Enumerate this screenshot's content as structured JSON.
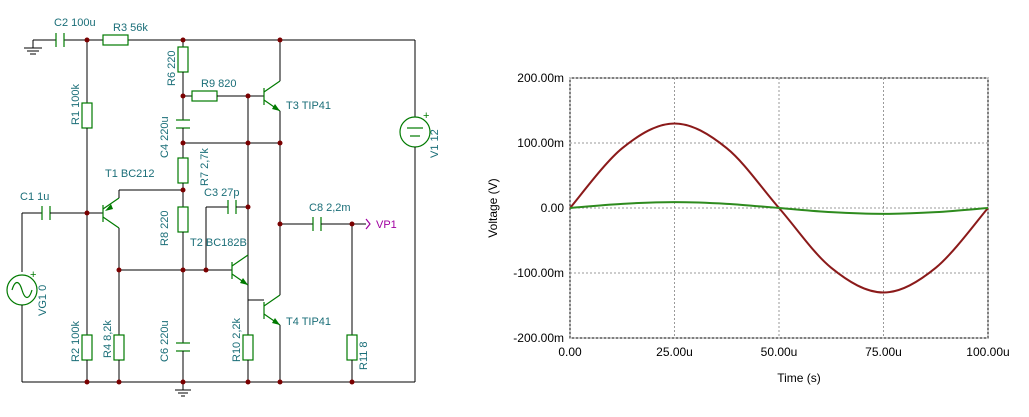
{
  "schematic": {
    "labels": {
      "c2": "C2 100u",
      "r3": "R3 56k",
      "r6": "R6 220",
      "r9": "R9 820",
      "t3": "T3 TIP41",
      "r1": "R1 100k",
      "c4": "C4 220u",
      "r7": "R7 2,7k",
      "t1": "T1 BC212",
      "c3": "C3 27p",
      "c1": "C1 1u",
      "r8": "R8 220",
      "t2": "T2 BC182B",
      "c8": "C8 2,2m",
      "vp1": "VP1",
      "v1": "V1 12",
      "vg1": "VG1 0",
      "r2": "R2 100k",
      "r4": "R4 8,2k",
      "c6": "C6 220u",
      "r10": "R10 2,2k",
      "t4": "T4 TIP41",
      "r11": "R11 8"
    },
    "colors": {
      "wire": "#000000",
      "component": "#007a00",
      "label": "#1a6e78",
      "probe": "#a000a0",
      "node": "#7a0000"
    }
  },
  "chart_data": {
    "type": "line",
    "xlabel": "Time (s)",
    "ylabel": "Voltage (V)",
    "xlim": [
      0,
      0.0001
    ],
    "ylim": [
      -0.2,
      0.2
    ],
    "xticks": [
      0,
      2.5e-05,
      5e-05,
      7.5e-05,
      0.0001
    ],
    "xtick_labels": [
      "0.00",
      "25.00u",
      "50.00u",
      "75.00u",
      "100.00u"
    ],
    "yticks": [
      0.2,
      0.1,
      0,
      -0.1,
      -0.2
    ],
    "ytick_labels": [
      "200.00m",
      "100.00m",
      "0.00",
      "-100.00m",
      "-200.00m"
    ],
    "grid": true,
    "series": [
      {
        "color": "#8b1a1a",
        "x": [
          0,
          1.25e-05,
          2.5e-05,
          3.75e-05,
          5e-05,
          6.25e-05,
          7.5e-05,
          8.75e-05,
          0.0001
        ],
        "y": [
          0,
          0.092,
          0.13,
          0.092,
          0,
          -0.092,
          -0.13,
          -0.092,
          0
        ]
      },
      {
        "color": "#2e8b1e",
        "x": [
          0,
          1.25e-05,
          2.5e-05,
          3.75e-05,
          5e-05,
          6.25e-05,
          7.5e-05,
          8.75e-05,
          0.0001
        ],
        "y": [
          0,
          0.0064,
          0.009,
          0.0064,
          0,
          -0.0064,
          -0.009,
          -0.0064,
          0
        ]
      }
    ]
  }
}
